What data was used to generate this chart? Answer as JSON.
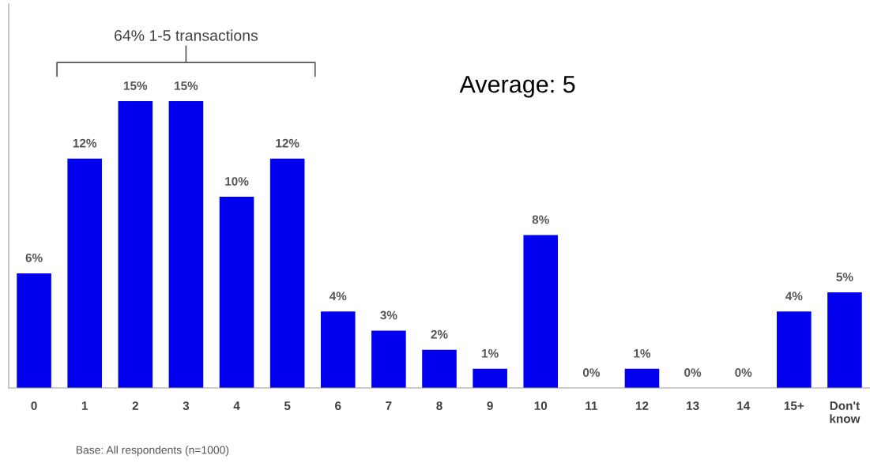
{
  "chart_data": {
    "type": "bar",
    "categories": [
      "0",
      "1",
      "2",
      "3",
      "4",
      "5",
      "6",
      "7",
      "8",
      "9",
      "10",
      "11",
      "12",
      "13",
      "14",
      "15+",
      "Don't know"
    ],
    "values": [
      6,
      12,
      15,
      15,
      10,
      12,
      4,
      3,
      2,
      1,
      8,
      0,
      1,
      0,
      0,
      4,
      5
    ],
    "value_labels": [
      "6%",
      "12%",
      "15%",
      "15%",
      "10%",
      "12%",
      "4%",
      "3%",
      "2%",
      "1%",
      "8%",
      "0%",
      "1%",
      "0%",
      "0%",
      "4%",
      "5%"
    ],
    "color": "#0000ee",
    "annotations": [
      "64% 1-5 transactions",
      "Average: 5",
      "Base: All respondents (n=1000)"
    ]
  }
}
